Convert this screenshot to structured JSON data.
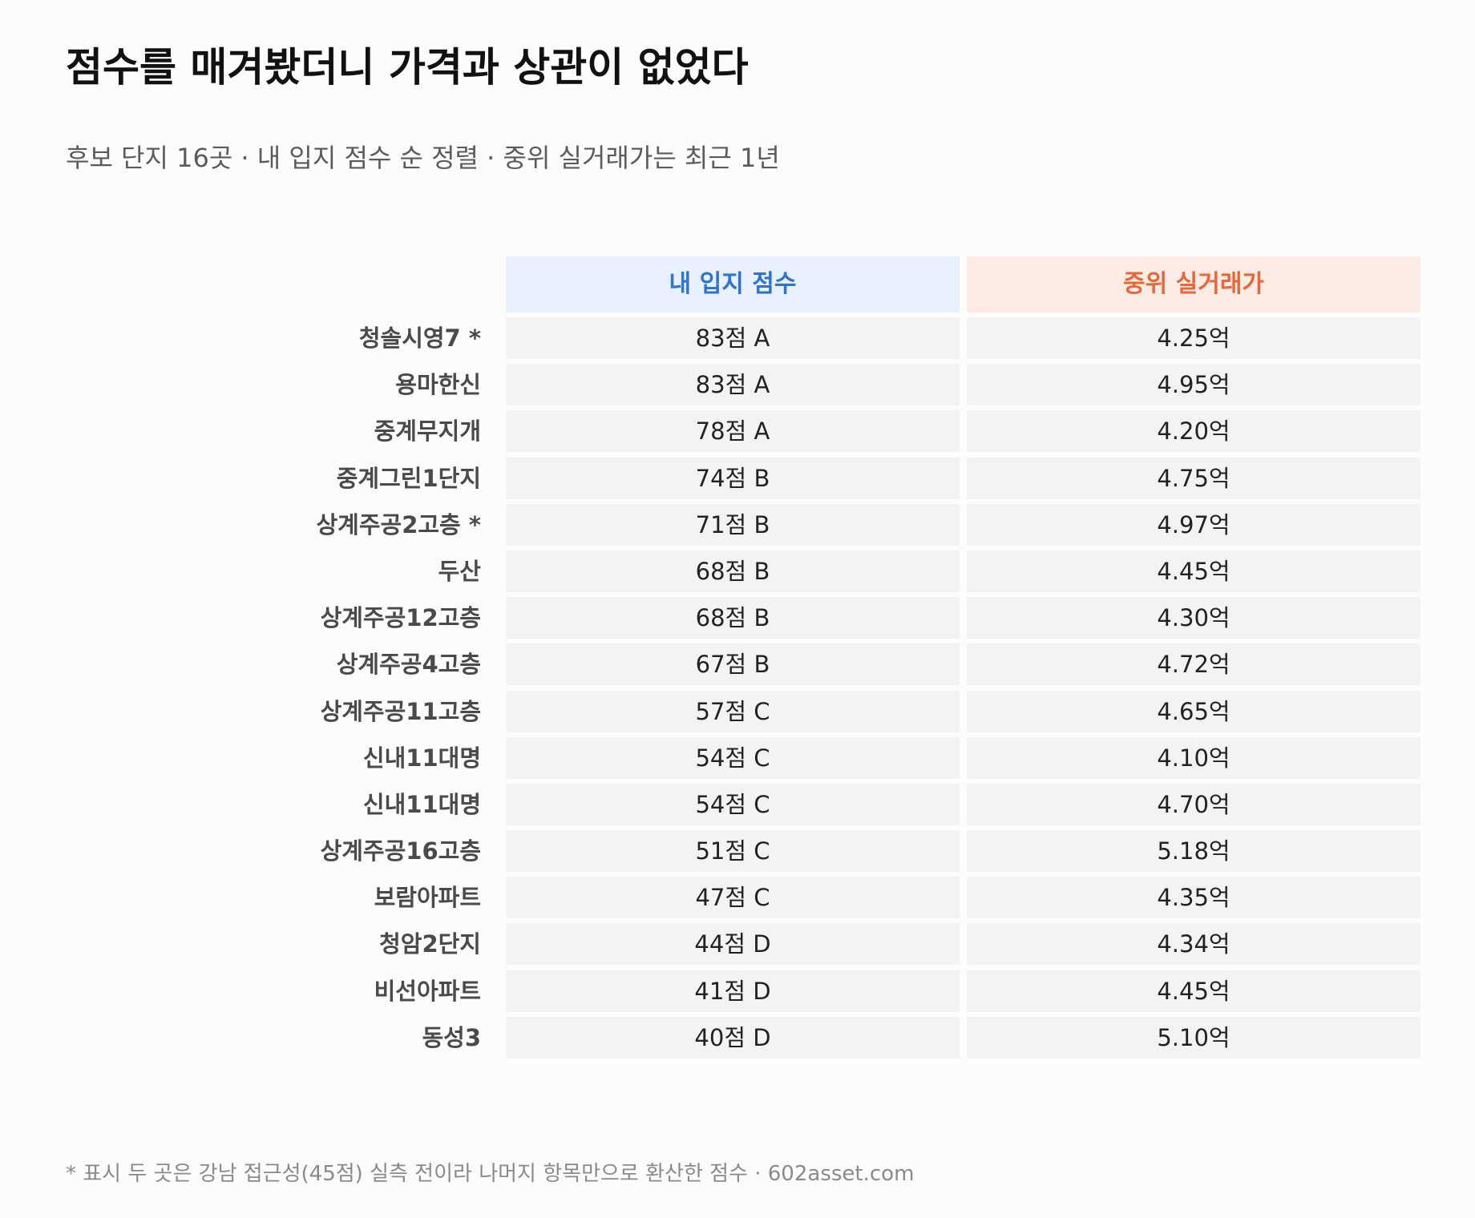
{
  "title": "점수를 매겨봤더니 가격과 상관이 없었다",
  "subtitle": "후보 단지 16곳 · 내 입지 점수 순 정렬 · 중위 실거래가는 최근 1년",
  "columns": {
    "score": "내 입지 점수",
    "price": "중위 실거래가"
  },
  "colors": {
    "score_header_bg": "#e8f1fd",
    "score_header_text": "#2f74d0",
    "price_header_bg": "#fdece6",
    "price_header_text": "#e8673a"
  },
  "rows": [
    {
      "name": "청솔시영7 *",
      "score": "83점 A",
      "price": "4.25억"
    },
    {
      "name": "용마한신",
      "score": "83점 A",
      "price": "4.95억"
    },
    {
      "name": "중계무지개",
      "score": "78점 A",
      "price": "4.20억"
    },
    {
      "name": "중계그린1단지",
      "score": "74점 B",
      "price": "4.75억"
    },
    {
      "name": "상계주공2고층 *",
      "score": "71점 B",
      "price": "4.97억"
    },
    {
      "name": "두산",
      "score": "68점 B",
      "price": "4.45억"
    },
    {
      "name": "상계주공12고층",
      "score": "68점 B",
      "price": "4.30억"
    },
    {
      "name": "상계주공4고층",
      "score": "67점 B",
      "price": "4.72억"
    },
    {
      "name": "상계주공11고층",
      "score": "57점 C",
      "price": "4.65억"
    },
    {
      "name": "신내11대명",
      "score": "54점 C",
      "price": "4.10억"
    },
    {
      "name": "신내11대명",
      "score": "54점 C",
      "price": "4.70억"
    },
    {
      "name": "상계주공16고층",
      "score": "51점 C",
      "price": "5.18억"
    },
    {
      "name": "보람아파트",
      "score": "47점 C",
      "price": "4.35억"
    },
    {
      "name": "청암2단지",
      "score": "44점 D",
      "price": "4.34억"
    },
    {
      "name": "비선아파트",
      "score": "41점 D",
      "price": "4.45억"
    },
    {
      "name": "동성3",
      "score": "40점 D",
      "price": "5.10억"
    }
  ],
  "footnote": "* 표시 두 곳은 강남 접근성(45점) 실측 전이라 나머지 항목만으로 환산한 점수 · 602asset.com"
}
